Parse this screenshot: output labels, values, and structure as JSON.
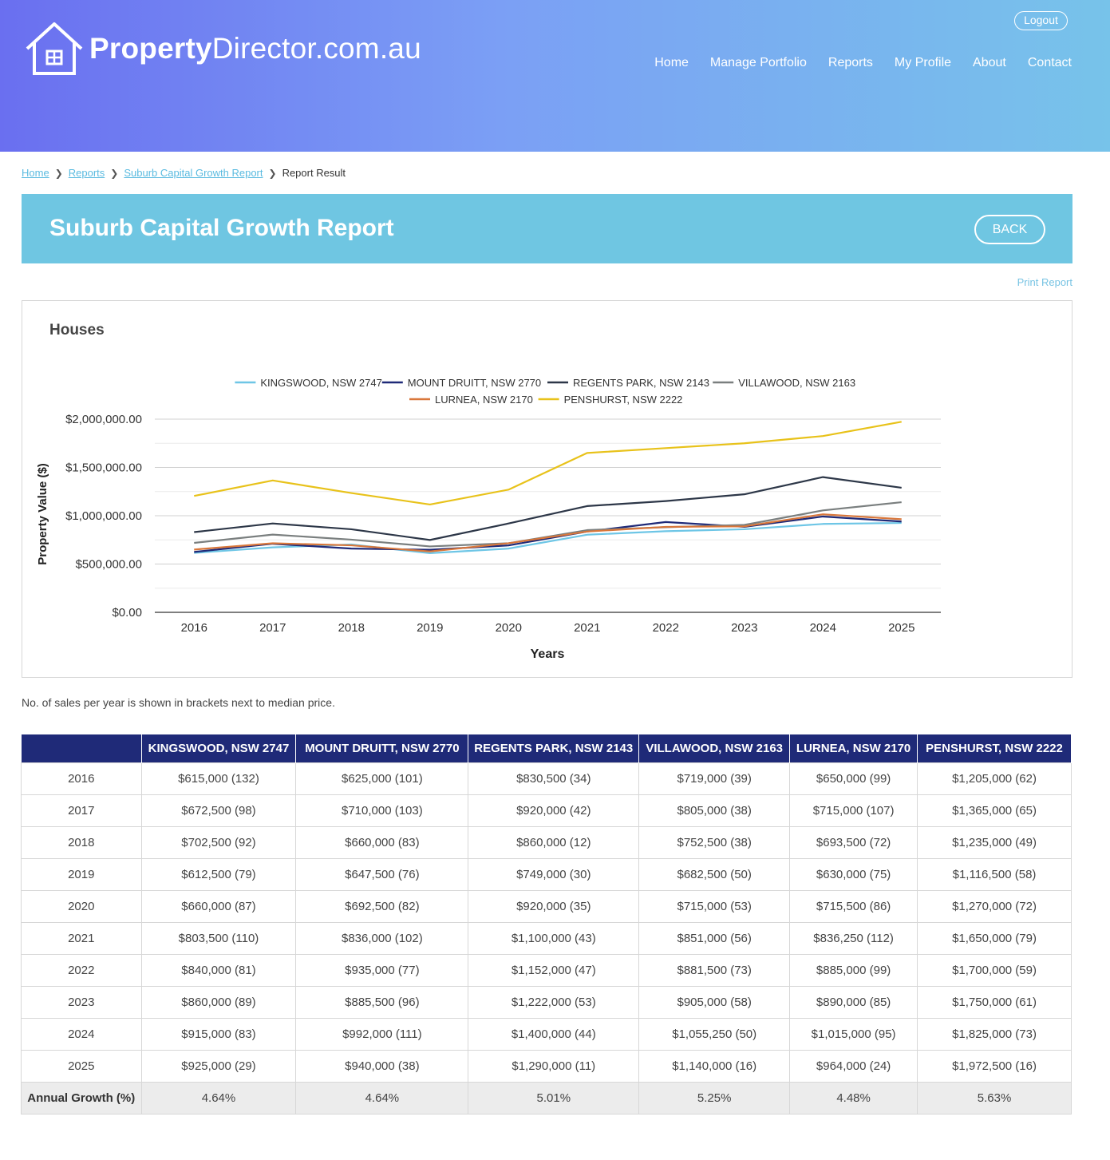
{
  "header": {
    "logo_bold": "Property",
    "logo_rest": "Director.com.au",
    "logout": "Logout",
    "nav": [
      "Home",
      "Manage Portfolio",
      "Reports",
      "My Profile",
      "About",
      "Contact"
    ]
  },
  "breadcrumb": {
    "items": [
      "Home",
      "Reports",
      "Suburb Capital Growth Report"
    ],
    "current": "Report Result"
  },
  "banner": {
    "title": "Suburb Capital Growth Report",
    "back": "BACK"
  },
  "print_report": "Print Report",
  "chart_title": "Houses",
  "note": "No. of sales per year is shown in brackets next to median price.",
  "colors": {
    "header_start": "#6a6ff0",
    "header_end": "#77c3ea",
    "banner": "#6fc6e2",
    "table_header": "#1f2a78"
  },
  "chart_data": {
    "type": "line",
    "x": [
      "2016",
      "2017",
      "2018",
      "2019",
      "2020",
      "2021",
      "2022",
      "2023",
      "2024",
      "2025"
    ],
    "xlabel": "Years",
    "ylabel": "Property Value ($)",
    "ylim": [
      0,
      2000000
    ],
    "yticks": [
      "$0.00",
      "$500,000.00",
      "$1,000,000.00",
      "$1,500,000.00",
      "$2,000,000.00"
    ],
    "grid": true,
    "legend_position": "top",
    "series": [
      {
        "name": "KINGSWOOD, NSW 2747",
        "color": "#6ec6e6",
        "values": [
          615000,
          672500,
          702500,
          612500,
          660000,
          803500,
          840000,
          860000,
          915000,
          925000
        ]
      },
      {
        "name": "MOUNT DRUITT, NSW 2770",
        "color": "#1f2a78",
        "values": [
          625000,
          710000,
          660000,
          647500,
          692500,
          836000,
          935000,
          885500,
          992000,
          940000
        ]
      },
      {
        "name": "REGENTS PARK, NSW 2143",
        "color": "#2d3748",
        "values": [
          830500,
          920000,
          860000,
          749000,
          920000,
          1100000,
          1152000,
          1222000,
          1400000,
          1290000
        ]
      },
      {
        "name": "VILLAWOOD, NSW 2163",
        "color": "#7a7f7f",
        "values": [
          719000,
          805000,
          752500,
          682500,
          715000,
          851000,
          881500,
          905000,
          1055250,
          1140000
        ]
      },
      {
        "name": "LURNEA, NSW 2170",
        "color": "#d9773b",
        "values": [
          650000,
          715000,
          693500,
          630000,
          715500,
          836250,
          885000,
          890000,
          1015000,
          964000
        ]
      },
      {
        "name": "PENSHURST, NSW 2222",
        "color": "#e8c21a",
        "values": [
          1205000,
          1365000,
          1235000,
          1116500,
          1270000,
          1650000,
          1700000,
          1750000,
          1825000,
          1972500
        ]
      }
    ]
  },
  "table": {
    "headers": [
      "",
      "KINGSWOOD, NSW 2747",
      "MOUNT DRUITT, NSW 2770",
      "REGENTS PARK, NSW 2143",
      "VILLAWOOD, NSW 2163",
      "LURNEA, NSW 2170",
      "PENSHURST, NSW 2222"
    ],
    "rows": [
      [
        "2016",
        "$615,000 (132)",
        "$625,000 (101)",
        "$830,500 (34)",
        "$719,000 (39)",
        "$650,000 (99)",
        "$1,205,000 (62)"
      ],
      [
        "2017",
        "$672,500 (98)",
        "$710,000 (103)",
        "$920,000 (42)",
        "$805,000 (38)",
        "$715,000 (107)",
        "$1,365,000 (65)"
      ],
      [
        "2018",
        "$702,500 (92)",
        "$660,000 (83)",
        "$860,000 (12)",
        "$752,500 (38)",
        "$693,500 (72)",
        "$1,235,000 (49)"
      ],
      [
        "2019",
        "$612,500 (79)",
        "$647,500 (76)",
        "$749,000 (30)",
        "$682,500 (50)",
        "$630,000 (75)",
        "$1,116,500 (58)"
      ],
      [
        "2020",
        "$660,000 (87)",
        "$692,500 (82)",
        "$920,000 (35)",
        "$715,000 (53)",
        "$715,500 (86)",
        "$1,270,000 (72)"
      ],
      [
        "2021",
        "$803,500 (110)",
        "$836,000 (102)",
        "$1,100,000 (43)",
        "$851,000 (56)",
        "$836,250 (112)",
        "$1,650,000 (79)"
      ],
      [
        "2022",
        "$840,000 (81)",
        "$935,000 (77)",
        "$1,152,000 (47)",
        "$881,500 (73)",
        "$885,000 (99)",
        "$1,700,000 (59)"
      ],
      [
        "2023",
        "$860,000 (89)",
        "$885,500 (96)",
        "$1,222,000 (53)",
        "$905,000 (58)",
        "$890,000 (85)",
        "$1,750,000 (61)"
      ],
      [
        "2024",
        "$915,000 (83)",
        "$992,000 (111)",
        "$1,400,000 (44)",
        "$1,055,250 (50)",
        "$1,015,000 (95)",
        "$1,825,000 (73)"
      ],
      [
        "2025",
        "$925,000 (29)",
        "$940,000 (38)",
        "$1,290,000 (11)",
        "$1,140,000 (16)",
        "$964,000 (24)",
        "$1,972,500 (16)"
      ]
    ],
    "growth": [
      "Annual Growth (%)",
      "4.64%",
      "4.64%",
      "5.01%",
      "5.25%",
      "4.48%",
      "5.63%"
    ]
  }
}
